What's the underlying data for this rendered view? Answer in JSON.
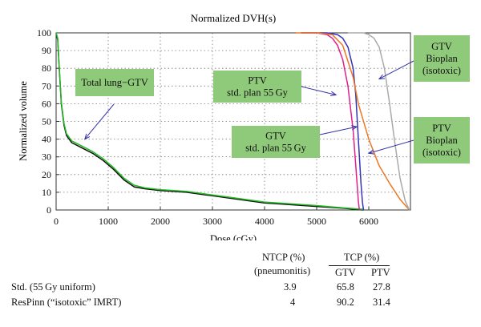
{
  "chart_data": {
    "type": "line",
    "title": "Normalized DVH(s)",
    "xlabel": "Dose (cGy)",
    "ylabel": "Normalized volume",
    "xlim": [
      0,
      6800
    ],
    "ylim": [
      0,
      100
    ],
    "xticks": [
      0,
      1000,
      2000,
      3000,
      4000,
      5000,
      6000
    ],
    "yticks": [
      0,
      10,
      20,
      30,
      40,
      50,
      60,
      70,
      80,
      90,
      100
    ],
    "grid": true,
    "series": [
      {
        "key": "lung_std",
        "color": "#111111",
        "x": [
          0,
          30,
          60,
          100,
          150,
          200,
          300,
          500,
          700,
          900,
          1100,
          1300,
          1500,
          1700,
          2000,
          2500,
          3000,
          3500,
          4000,
          4500,
          5000,
          5500,
          5900
        ],
        "y": [
          100,
          96,
          80,
          60,
          48,
          42,
          38,
          35,
          32,
          28,
          23,
          17,
          13,
          12,
          11,
          10,
          8,
          6,
          4,
          3,
          2,
          1,
          0
        ]
      },
      {
        "key": "lung_iso",
        "color": "#22bb22",
        "x": [
          0,
          30,
          60,
          100,
          150,
          200,
          300,
          500,
          700,
          900,
          1100,
          1300,
          1500,
          1700,
          2000,
          2500,
          3000,
          3500,
          4000,
          4500,
          5000,
          5500,
          5900
        ],
        "y": [
          100,
          97,
          81,
          61,
          49,
          43,
          39,
          36,
          33,
          29,
          24,
          18,
          14,
          12.5,
          11.5,
          10.5,
          8.5,
          6.5,
          4.5,
          3.5,
          2.5,
          1.2,
          0.3
        ]
      },
      {
        "key": "gtv_std",
        "color": "#e0208f",
        "x": [
          4700,
          5000,
          5200,
          5300,
          5400,
          5500,
          5600,
          5700,
          5750,
          5800,
          5820
        ],
        "y": [
          100,
          100,
          99,
          97,
          93,
          85,
          70,
          45,
          25,
          5,
          0
        ]
      },
      {
        "key": "ptv_std",
        "color": "#3333bb",
        "x": [
          4700,
          5200,
          5400,
          5500,
          5600,
          5700,
          5750,
          5800,
          5850,
          5880,
          5900
        ],
        "y": [
          100,
          100,
          99,
          97,
          92,
          80,
          65,
          40,
          15,
          4,
          0
        ]
      },
      {
        "key": "ptv_bioplan",
        "color": "#ee7722",
        "x": [
          4600,
          5000,
          5300,
          5500,
          5700,
          5800,
          6000,
          6200,
          6400,
          6600,
          6780
        ],
        "y": [
          100,
          100,
          99,
          93,
          75,
          60,
          40,
          25,
          15,
          6,
          0
        ]
      },
      {
        "key": "gtv_bioplan",
        "color": "#aaaaaa",
        "x": [
          5600,
          5900,
          6000,
          6100,
          6200,
          6300,
          6400,
          6500,
          6600,
          6700,
          6780
        ],
        "y": [
          100,
          100,
          99,
          97,
          92,
          80,
          60,
          38,
          18,
          5,
          0
        ]
      }
    ],
    "annotations": [
      {
        "key": "lung",
        "lines": [
          "Total lung−GTV"
        ],
        "target": [
          550,
          40
        ]
      },
      {
        "key": "ptv_std",
        "lines": [
          "PTV",
          "std. plan 55 Gy"
        ],
        "target": [
          5370,
          65
        ]
      },
      {
        "key": "gtv_std",
        "lines": [
          "GTV",
          "std. plan 55 Gy"
        ],
        "target": [
          5770,
          47
        ]
      },
      {
        "key": "gtv_bio",
        "lines": [
          "GTV",
          "Bioplan",
          "(isotoxic)"
        ],
        "target": [
          6200,
          74
        ]
      },
      {
        "key": "ptv_bio",
        "lines": [
          "PTV",
          "Bioplan",
          "(isotoxic)"
        ],
        "target": [
          6000,
          32
        ]
      }
    ]
  },
  "table": {
    "ntcp_header": [
      "NTCP (%)",
      "(pneumonitis)"
    ],
    "tcp_header": "TCP (%)",
    "sub_gtv": "GTV",
    "sub_ptv": "PTV",
    "rows": [
      {
        "label": "Std. (55 Gy uniform)",
        "ntcp": "3.9",
        "gtv": "65.8",
        "ptv": "27.8"
      },
      {
        "label": "ResPinn (“isotoxic” IMRT)",
        "ntcp": "4",
        "gtv": "90.2",
        "ptv": "31.4"
      }
    ]
  }
}
